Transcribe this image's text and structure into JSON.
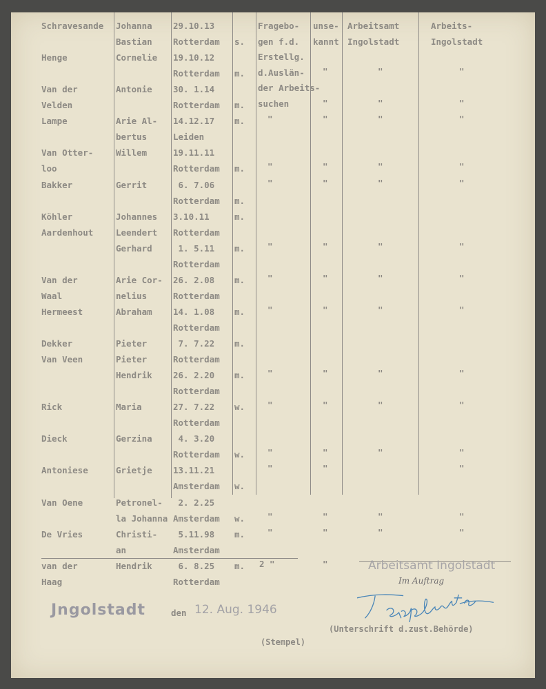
{
  "headers": {
    "fragebogen": [
      "Fragebo-",
      "gen f.d.",
      "Erstellg.",
      "d.Auslän-",
      "der Arbeits-",
      "suchen"
    ],
    "unbekannt": [
      "unse-",
      "kannt"
    ],
    "arbeitsamt1": [
      "Arbeitsamt",
      "Ingolstadt"
    ],
    "arbeitsamt2": [
      "Arbeits-",
      "Ingolstadt"
    ]
  },
  "lines": [
    {
      "surname": "Schravesande",
      "first": "Johanna",
      "date": "29.10.13",
      "sex": "",
      "marks": [
        "",
        "",
        "",
        ""
      ]
    },
    {
      "surname": "",
      "first": "Bastian",
      "date": "Rotterdam",
      "sex": "s.",
      "marks": [
        "",
        "",
        "",
        ""
      ]
    },
    {
      "surname": "Henge",
      "first": "Cornelie",
      "date": "19.10.12",
      "sex": "",
      "marks": [
        "",
        "",
        "",
        ""
      ]
    },
    {
      "surname": "",
      "first": "",
      "date": "Rotterdam",
      "sex": "m.",
      "marks": [
        "",
        "\"",
        "\"",
        "\""
      ]
    },
    {
      "surname": "Van der",
      "first": "Antonie",
      "date": "30. 1.14",
      "sex": "",
      "marks": [
        "",
        "",
        "",
        ""
      ]
    },
    {
      "surname": "Velden",
      "first": "",
      "date": "Rotterdam",
      "sex": "m.",
      "marks": [
        "",
        "\"",
        "\"",
        "\""
      ]
    },
    {
      "surname": "Lampe",
      "first": "Arie Al-",
      "date": "14.12.17",
      "sex": "m.",
      "marks": [
        "\"",
        "\"",
        "\"",
        "\""
      ]
    },
    {
      "surname": "",
      "first": "bertus",
      "date": "Leiden",
      "sex": "",
      "marks": [
        "",
        "",
        "",
        ""
      ]
    },
    {
      "surname": "Van Otter-",
      "first": "Willem",
      "date": "19.11.11",
      "sex": "",
      "marks": [
        "",
        "",
        "",
        ""
      ]
    },
    {
      "surname": "loo",
      "first": "",
      "date": "Rotterdam",
      "sex": "m.",
      "marks": [
        "\"",
        "\"",
        "\"",
        "\""
      ]
    },
    {
      "surname": "Bakker",
      "first": "Gerrit",
      "date": " 6. 7.06",
      "sex": "",
      "marks": [
        "\"",
        "\"",
        "\"",
        "\""
      ]
    },
    {
      "surname": "",
      "first": "",
      "date": "Rotterdam",
      "sex": "m.",
      "marks": [
        "",
        "",
        "",
        ""
      ]
    },
    {
      "surname": "Köhler",
      "first": "Johannes",
      "date": "3.10.11",
      "sex": "m.",
      "marks": [
        "",
        "",
        "",
        ""
      ]
    },
    {
      "surname": "Aardenhout",
      "first": "Leendert",
      "date": "Rotterdam",
      "sex": "",
      "marks": [
        "",
        "",
        "",
        ""
      ]
    },
    {
      "surname": "",
      "first": "Gerhard",
      "date": " 1. 5.11",
      "sex": "m.",
      "marks": [
        "\"",
        "\"",
        "\"",
        "\""
      ]
    },
    {
      "surname": "",
      "first": "",
      "date": "Rotterdam",
      "sex": "",
      "marks": [
        "",
        "",
        "",
        ""
      ]
    },
    {
      "surname": "Van der",
      "first": "Arie Cor-",
      "date": "26. 2.08",
      "sex": "m.",
      "marks": [
        "\"",
        "\"",
        "\"",
        "\""
      ]
    },
    {
      "surname": "Waal",
      "first": "nelius",
      "date": "Rotterdam",
      "sex": "",
      "marks": [
        "",
        "",
        "",
        ""
      ]
    },
    {
      "surname": "Hermeest",
      "first": "Abraham",
      "date": "14. 1.08",
      "sex": "m.",
      "marks": [
        "\"",
        "\"",
        "\"",
        "\""
      ]
    },
    {
      "surname": "",
      "first": "",
      "date": "Rotterdam",
      "sex": "",
      "marks": [
        "",
        "",
        "",
        ""
      ]
    },
    {
      "surname": "Dekker",
      "first": "Pieter",
      "date": " 7. 7.22",
      "sex": "m.",
      "marks": [
        "",
        "",
        "",
        ""
      ]
    },
    {
      "surname": "Van Veen",
      "first": "Pieter",
      "date": "Rotterdam",
      "sex": "",
      "marks": [
        "",
        "",
        "",
        ""
      ]
    },
    {
      "surname": "",
      "first": "Hendrik",
      "date": "26. 2.20",
      "sex": "m.",
      "marks": [
        "\"",
        "\"",
        "\"",
        "\""
      ]
    },
    {
      "surname": "",
      "first": "",
      "date": "Rotterdam",
      "sex": "",
      "marks": [
        "",
        "",
        "",
        ""
      ]
    },
    {
      "surname": "Rick",
      "first": "Maria",
      "date": "27. 7.22",
      "sex": "w.",
      "marks": [
        "\"",
        "\"",
        "\"",
        "\""
      ]
    },
    {
      "surname": "",
      "first": "",
      "date": "Rotterdam",
      "sex": "",
      "marks": [
        "",
        "",
        "",
        ""
      ]
    },
    {
      "surname": "Dieck",
      "first": "Gerzina",
      "date": " 4. 3.20",
      "sex": "",
      "marks": [
        "",
        "",
        "",
        ""
      ]
    },
    {
      "surname": "",
      "first": "",
      "date": "Rotterdam",
      "sex": "w.",
      "marks": [
        "\"",
        "\"",
        "\"",
        "\""
      ]
    },
    {
      "surname": "Antoniese",
      "first": "Grietje",
      "date": "13.11.21",
      "sex": "",
      "marks": [
        "\"",
        "\"",
        "",
        "\""
      ]
    },
    {
      "surname": "",
      "first": "",
      "date": "Amsterdam",
      "sex": "w.",
      "marks": [
        "",
        "",
        "",
        ""
      ]
    },
    {
      "surname": "Van Oene",
      "first": "Petronel-",
      "date": " 2. 2.25",
      "sex": "",
      "marks": [
        "",
        "",
        "",
        ""
      ]
    },
    {
      "surname": "",
      "first": "la Johanna",
      "date": "Amsterdam",
      "sex": "w.",
      "marks": [
        "\"",
        "\"",
        "\"",
        "\""
      ]
    },
    {
      "surname": "De Vries",
      "first": "Christi-",
      "date": " 5.11.98",
      "sex": "m.",
      "marks": [
        "\"",
        "\"",
        "\"",
        "\""
      ]
    },
    {
      "surname": "",
      "first": "an",
      "date": "Amsterdam",
      "sex": "",
      "marks": [
        "",
        "",
        "",
        ""
      ]
    },
    {
      "surname": "van der",
      "first": "Hendrik",
      "date": " 6. 8.25",
      "sex": "m.",
      "marks": [
        "2 \"",
        "\"",
        "",
        ""
      ]
    },
    {
      "surname": "Haag",
      "first": "",
      "date": "Rotterdam",
      "sex": "",
      "marks": [
        "",
        "",
        "",
        ""
      ]
    }
  ],
  "footer": {
    "place_stamp": "Jngolstadt",
    "den": "den",
    "date_stamp": "12. Aug. 1946",
    "office_stamp": "Arbeitsamt Ingolstadt",
    "im_auftrag": "Im Auftrag",
    "signature": "Tempelmeister",
    "signature_caption": "(Unterschrift d.zust.Behörde)",
    "stempel": "(Stempel)"
  },
  "colors": {
    "paper": "#e9e3cf",
    "type": "#8d8a84",
    "ink_signature": "#4a86b8",
    "stamp": "#9b9a9c"
  }
}
